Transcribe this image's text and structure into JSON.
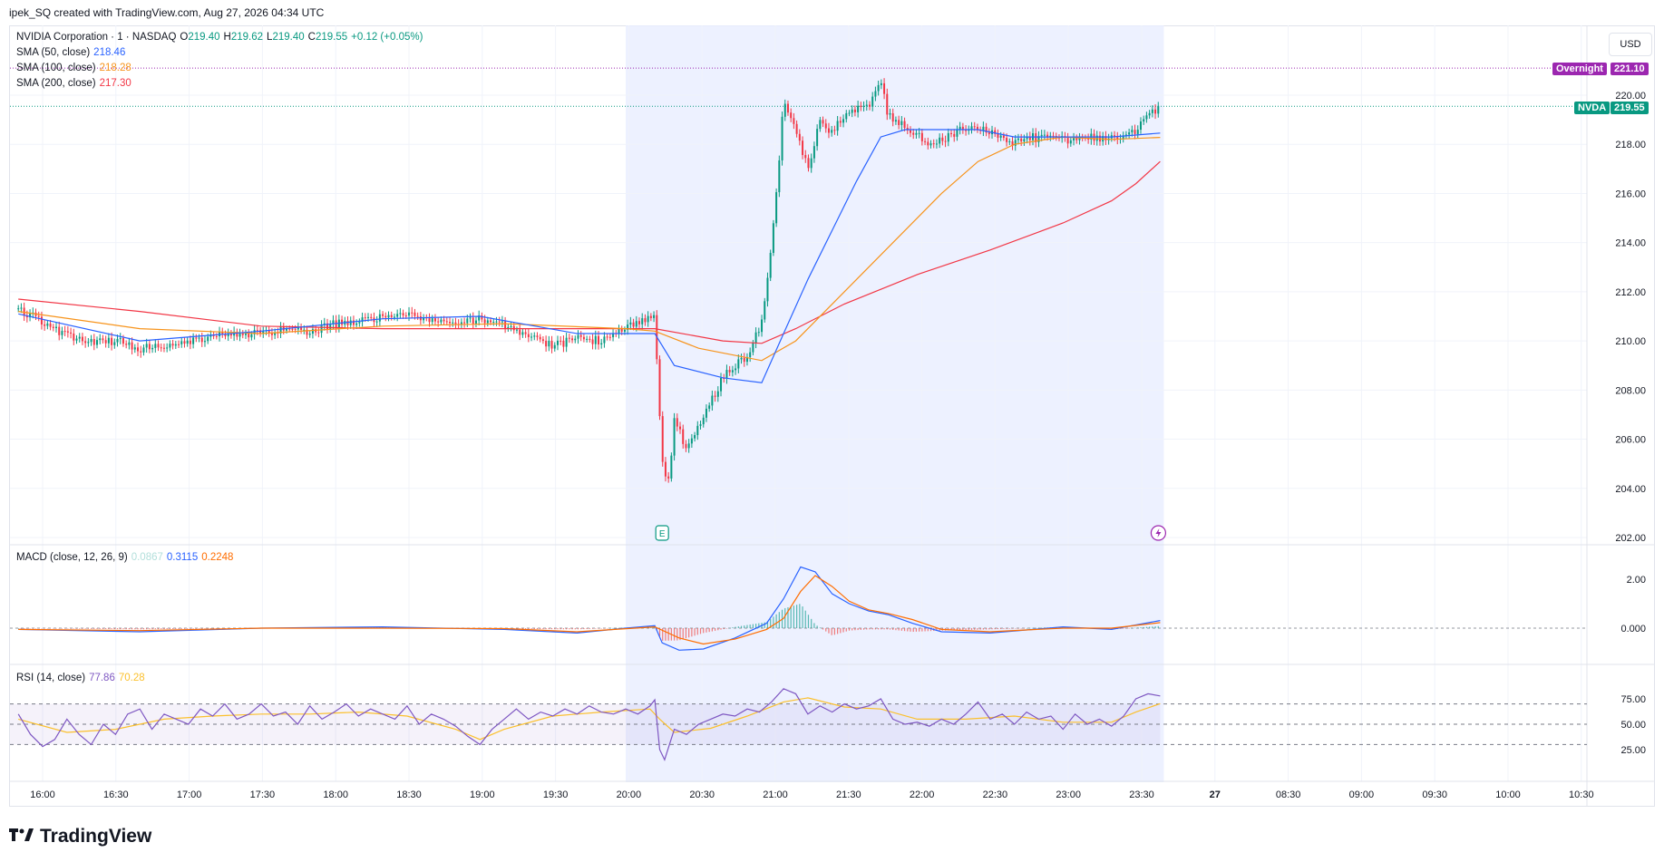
{
  "header": {
    "created_text": "ipek_SQ created with TradingView.com, Aug 27, 2026 04:34 UTC"
  },
  "legend": {
    "symbol": "NVIDIA Corporation · 1 · NASDAQ",
    "o_label": "O",
    "o": "219.40",
    "h_label": "H",
    "h": "219.62",
    "l_label": "L",
    "l": "219.40",
    "c_label": "C",
    "c": "219.55",
    "change": "+0.12 (+0.05%)",
    "sma50": "SMA (50, close)",
    "sma50_val": "218.46",
    "sma100": "SMA (100, close)",
    "sma100_val": "218.28",
    "sma200": "SMA (200, close)",
    "sma200_val": "217.30",
    "macd": "MACD (close, 12, 26, 9)",
    "macd_hist": "0.0867",
    "macd_line": "0.3115",
    "macd_signal": "0.2248",
    "rsi": "RSI (14, close)",
    "rsi_val": "77.86",
    "rsi_ma": "70.28"
  },
  "currency": "USD",
  "tags": {
    "overnight_label": "Overnight",
    "overnight_value": "221.10",
    "nvda_label": "NVDA",
    "nvda_value": "219.55"
  },
  "markers": {
    "earnings": "E"
  },
  "brand": {
    "name": "TradingView"
  },
  "colors": {
    "up": "#089981",
    "down": "#f23645",
    "sma50": "#2962ff",
    "sma100": "#f7931a",
    "sma200": "#f23645",
    "macd": "#2962ff",
    "signal": "#ff6d00",
    "rsi": "#7e57c2",
    "rsi_ma": "#fbc02d",
    "session_bg": "#e8eeff",
    "overnight": "#9c27b0"
  },
  "chart_data": [
    {
      "type": "candlestick",
      "title": "NVIDIA Corporation · 1 · NASDAQ",
      "y_ticks": [
        "202.00",
        "204.00",
        "206.00",
        "208.00",
        "210.00",
        "212.00",
        "214.00",
        "216.00",
        "218.00",
        "220.00"
      ],
      "ylim": [
        202,
        221.5
      ],
      "x_ticks": [
        "16:00",
        "16:30",
        "17:00",
        "17:30",
        "18:00",
        "18:30",
        "19:00",
        "19:30",
        "20:00",
        "20:30",
        "21:00",
        "21:30",
        "22:00",
        "22:30",
        "23:00",
        "23:30",
        "27",
        "08:30",
        "09:00",
        "09:30",
        "10:00",
        "10:30"
      ],
      "x_time_range_minutes": [
        950,
        1420
      ],
      "close_path": [
        [
          950,
          211.3
        ],
        [
          960,
          210.8
        ],
        [
          970,
          210.2
        ],
        [
          980,
          210.0
        ],
        [
          990,
          210.0
        ],
        [
          1000,
          209.7
        ],
        [
          1010,
          209.8
        ],
        [
          1020,
          210.0
        ],
        [
          1030,
          210.2
        ],
        [
          1040,
          210.2
        ],
        [
          1050,
          210.3
        ],
        [
          1060,
          210.5
        ],
        [
          1070,
          210.3
        ],
        [
          1080,
          210.7
        ],
        [
          1090,
          210.8
        ],
        [
          1100,
          211.0
        ],
        [
          1110,
          211.0
        ],
        [
          1120,
          210.9
        ],
        [
          1130,
          210.8
        ],
        [
          1140,
          210.9
        ],
        [
          1150,
          210.6
        ],
        [
          1160,
          210.3
        ],
        [
          1170,
          209.8
        ],
        [
          1180,
          210.1
        ],
        [
          1190,
          210.0
        ],
        [
          1200,
          210.5
        ],
        [
          1205,
          210.7
        ],
        [
          1212,
          211.0
        ],
        [
          1215,
          205.0
        ],
        [
          1218,
          204.2
        ],
        [
          1220,
          207.0
        ],
        [
          1225,
          205.5
        ],
        [
          1230,
          206.5
        ],
        [
          1235,
          207.5
        ],
        [
          1240,
          208.5
        ],
        [
          1245,
          209.0
        ],
        [
          1250,
          209.4
        ],
        [
          1255,
          210.5
        ],
        [
          1258,
          212.0
        ],
        [
          1262,
          216.0
        ],
        [
          1265,
          219.7
        ],
        [
          1270,
          218.5
        ],
        [
          1275,
          217.0
        ],
        [
          1280,
          219.0
        ],
        [
          1285,
          218.5
        ],
        [
          1290,
          219.2
        ],
        [
          1295,
          219.4
        ],
        [
          1300,
          219.5
        ],
        [
          1305,
          220.5
        ],
        [
          1308,
          219.2
        ],
        [
          1312,
          218.9
        ],
        [
          1318,
          218.5
        ],
        [
          1325,
          218.0
        ],
        [
          1332,
          218.3
        ],
        [
          1340,
          218.7
        ],
        [
          1345,
          218.6
        ],
        [
          1350,
          218.5
        ],
        [
          1355,
          218.3
        ],
        [
          1360,
          218.0
        ],
        [
          1365,
          218.4
        ],
        [
          1370,
          218.2
        ],
        [
          1375,
          218.3
        ],
        [
          1380,
          218.2
        ],
        [
          1385,
          218.1
        ],
        [
          1390,
          218.3
        ],
        [
          1395,
          218.2
        ],
        [
          1400,
          218.4
        ],
        [
          1405,
          218.3
        ],
        [
          1410,
          218.6
        ],
        [
          1415,
          219.2
        ],
        [
          1420,
          219.55
        ]
      ],
      "sma50": [
        [
          950,
          211.1
        ],
        [
          1000,
          210.0
        ],
        [
          1050,
          210.4
        ],
        [
          1100,
          210.9
        ],
        [
          1140,
          211.0
        ],
        [
          1180,
          210.3
        ],
        [
          1212,
          210.3
        ],
        [
          1220,
          209.0
        ],
        [
          1240,
          208.5
        ],
        [
          1256,
          208.3
        ],
        [
          1265,
          210.3
        ],
        [
          1275,
          212.5
        ],
        [
          1285,
          214.5
        ],
        [
          1295,
          216.5
        ],
        [
          1305,
          218.3
        ],
        [
          1315,
          218.6
        ],
        [
          1330,
          218.6
        ],
        [
          1345,
          218.6
        ],
        [
          1360,
          218.3
        ],
        [
          1380,
          218.3
        ],
        [
          1400,
          218.3
        ],
        [
          1420,
          218.46
        ]
      ],
      "sma100": [
        [
          950,
          211.2
        ],
        [
          1000,
          210.5
        ],
        [
          1050,
          210.3
        ],
        [
          1100,
          210.6
        ],
        [
          1150,
          210.7
        ],
        [
          1200,
          210.5
        ],
        [
          1212,
          210.4
        ],
        [
          1230,
          209.7
        ],
        [
          1256,
          209.2
        ],
        [
          1270,
          210.0
        ],
        [
          1290,
          212.0
        ],
        [
          1310,
          214.0
        ],
        [
          1330,
          216.0
        ],
        [
          1345,
          217.3
        ],
        [
          1360,
          218.0
        ],
        [
          1380,
          218.3
        ],
        [
          1400,
          218.2
        ],
        [
          1420,
          218.28
        ]
      ],
      "sma200": [
        [
          950,
          211.7
        ],
        [
          1000,
          211.2
        ],
        [
          1050,
          210.6
        ],
        [
          1100,
          210.5
        ],
        [
          1150,
          210.5
        ],
        [
          1200,
          210.5
        ],
        [
          1212,
          210.5
        ],
        [
          1240,
          210.0
        ],
        [
          1256,
          209.9
        ],
        [
          1270,
          210.5
        ],
        [
          1290,
          211.5
        ],
        [
          1320,
          212.7
        ],
        [
          1350,
          213.7
        ],
        [
          1380,
          214.8
        ],
        [
          1400,
          215.7
        ],
        [
          1410,
          216.4
        ],
        [
          1420,
          217.3
        ]
      ],
      "overnight_level": 221.1,
      "last_price": 219.55
    },
    {
      "type": "line",
      "title": "MACD (close, 12, 26, 9)",
      "y_ticks": [
        "2.00",
        "0.000"
      ],
      "ylim": [
        -1.1,
        2.95
      ],
      "macd": [
        [
          950,
          -0.05
        ],
        [
          1000,
          -0.15
        ],
        [
          1050,
          0.0
        ],
        [
          1100,
          0.05
        ],
        [
          1150,
          -0.05
        ],
        [
          1180,
          -0.2
        ],
        [
          1200,
          0.0
        ],
        [
          1212,
          0.1
        ],
        [
          1215,
          -0.6
        ],
        [
          1222,
          -0.9
        ],
        [
          1232,
          -0.85
        ],
        [
          1245,
          -0.4
        ],
        [
          1258,
          0.2
        ],
        [
          1265,
          1.2
        ],
        [
          1272,
          2.5
        ],
        [
          1278,
          2.3
        ],
        [
          1285,
          1.4
        ],
        [
          1292,
          1.0
        ],
        [
          1300,
          0.7
        ],
        [
          1308,
          0.55
        ],
        [
          1318,
          0.2
        ],
        [
          1330,
          -0.15
        ],
        [
          1350,
          -0.2
        ],
        [
          1380,
          0.05
        ],
        [
          1400,
          -0.05
        ],
        [
          1420,
          0.3115
        ]
      ],
      "signal": [
        [
          950,
          -0.05
        ],
        [
          1000,
          -0.1
        ],
        [
          1050,
          0.0
        ],
        [
          1100,
          0.0
        ],
        [
          1150,
          -0.02
        ],
        [
          1180,
          -0.15
        ],
        [
          1212,
          0.05
        ],
        [
          1222,
          -0.4
        ],
        [
          1232,
          -0.65
        ],
        [
          1245,
          -0.45
        ],
        [
          1258,
          -0.05
        ],
        [
          1265,
          0.4
        ],
        [
          1272,
          1.5
        ],
        [
          1278,
          2.15
        ],
        [
          1285,
          1.7
        ],
        [
          1292,
          1.1
        ],
        [
          1300,
          0.75
        ],
        [
          1308,
          0.6
        ],
        [
          1318,
          0.35
        ],
        [
          1330,
          -0.05
        ],
        [
          1350,
          -0.15
        ],
        [
          1380,
          0.0
        ],
        [
          1400,
          0.0
        ],
        [
          1420,
          0.2248
        ]
      ],
      "zero_line": 0
    },
    {
      "type": "line",
      "title": "RSI (14, close)",
      "y_ticks": [
        "75.00",
        "50.00",
        "25.00"
      ],
      "ylim": [
        10,
        100
      ],
      "bands": [
        30,
        50,
        70
      ],
      "rsi": [
        [
          950,
          60
        ],
        [
          955,
          40
        ],
        [
          960,
          28
        ],
        [
          965,
          35
        ],
        [
          970,
          55
        ],
        [
          975,
          40
        ],
        [
          980,
          30
        ],
        [
          985,
          50
        ],
        [
          990,
          40
        ],
        [
          995,
          60
        ],
        [
          1000,
          65
        ],
        [
          1005,
          45
        ],
        [
          1010,
          60
        ],
        [
          1015,
          55
        ],
        [
          1020,
          50
        ],
        [
          1025,
          65
        ],
        [
          1030,
          58
        ],
        [
          1035,
          70
        ],
        [
          1040,
          55
        ],
        [
          1045,
          60
        ],
        [
          1050,
          70
        ],
        [
          1055,
          58
        ],
        [
          1060,
          62
        ],
        [
          1065,
          50
        ],
        [
          1070,
          68
        ],
        [
          1075,
          55
        ],
        [
          1080,
          62
        ],
        [
          1085,
          70
        ],
        [
          1090,
          58
        ],
        [
          1095,
          65
        ],
        [
          1100,
          60
        ],
        [
          1105,
          55
        ],
        [
          1110,
          68
        ],
        [
          1115,
          50
        ],
        [
          1120,
          60
        ],
        [
          1125,
          55
        ],
        [
          1130,
          48
        ],
        [
          1135,
          38
        ],
        [
          1140,
          30
        ],
        [
          1145,
          45
        ],
        [
          1150,
          55
        ],
        [
          1155,
          65
        ],
        [
          1160,
          55
        ],
        [
          1165,
          62
        ],
        [
          1170,
          58
        ],
        [
          1175,
          65
        ],
        [
          1180,
          60
        ],
        [
          1185,
          68
        ],
        [
          1190,
          62
        ],
        [
          1195,
          60
        ],
        [
          1200,
          65
        ],
        [
          1205,
          60
        ],
        [
          1210,
          68
        ],
        [
          1212,
          74
        ],
        [
          1214,
          25
        ],
        [
          1216,
          15
        ],
        [
          1220,
          45
        ],
        [
          1225,
          40
        ],
        [
          1230,
          50
        ],
        [
          1235,
          55
        ],
        [
          1240,
          60
        ],
        [
          1245,
          58
        ],
        [
          1250,
          65
        ],
        [
          1255,
          62
        ],
        [
          1260,
          72
        ],
        [
          1265,
          85
        ],
        [
          1270,
          80
        ],
        [
          1275,
          60
        ],
        [
          1280,
          68
        ],
        [
          1285,
          62
        ],
        [
          1290,
          70
        ],
        [
          1295,
          65
        ],
        [
          1300,
          68
        ],
        [
          1305,
          75
        ],
        [
          1310,
          55
        ],
        [
          1315,
          50
        ],
        [
          1320,
          52
        ],
        [
          1325,
          48
        ],
        [
          1330,
          55
        ],
        [
          1335,
          50
        ],
        [
          1340,
          60
        ],
        [
          1345,
          72
        ],
        [
          1350,
          55
        ],
        [
          1355,
          60
        ],
        [
          1360,
          50
        ],
        [
          1365,
          62
        ],
        [
          1370,
          55
        ],
        [
          1375,
          58
        ],
        [
          1380,
          45
        ],
        [
          1385,
          60
        ],
        [
          1390,
          50
        ],
        [
          1395,
          55
        ],
        [
          1400,
          48
        ],
        [
          1405,
          58
        ],
        [
          1410,
          75
        ],
        [
          1415,
          80
        ],
        [
          1420,
          77.86
        ]
      ],
      "rsi_ma": [
        [
          950,
          55
        ],
        [
          970,
          42
        ],
        [
          990,
          45
        ],
        [
          1010,
          55
        ],
        [
          1030,
          58
        ],
        [
          1050,
          60
        ],
        [
          1070,
          60
        ],
        [
          1090,
          62
        ],
        [
          1110,
          58
        ],
        [
          1130,
          45
        ],
        [
          1140,
          35
        ],
        [
          1150,
          45
        ],
        [
          1170,
          58
        ],
        [
          1190,
          62
        ],
        [
          1210,
          65
        ],
        [
          1214,
          55
        ],
        [
          1220,
          42
        ],
        [
          1235,
          46
        ],
        [
          1250,
          58
        ],
        [
          1265,
          72
        ],
        [
          1275,
          76
        ],
        [
          1290,
          67
        ],
        [
          1305,
          65
        ],
        [
          1320,
          55
        ],
        [
          1340,
          55
        ],
        [
          1360,
          58
        ],
        [
          1380,
          52
        ],
        [
          1400,
          52
        ],
        [
          1410,
          62
        ],
        [
          1420,
          70.28
        ]
      ]
    }
  ]
}
